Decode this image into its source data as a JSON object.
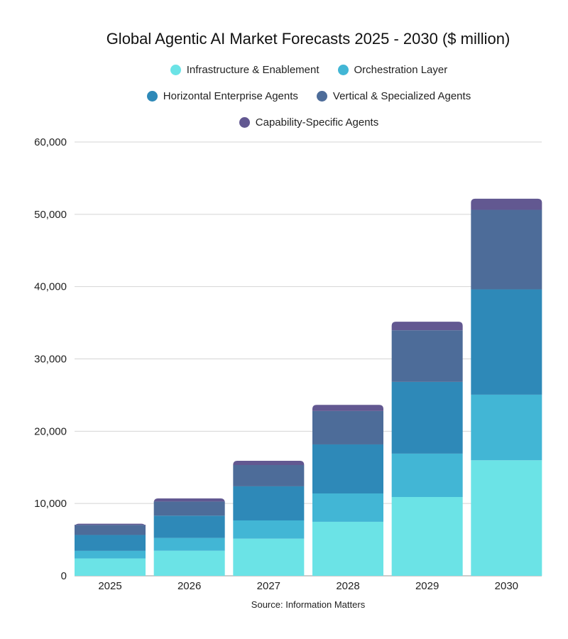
{
  "chart_data": {
    "type": "bar",
    "stacked": true,
    "title": "Global Agentic AI Market Forecasts 2025 - 2030 ($ million)",
    "xlabel": "",
    "ylabel": "",
    "source": "Source: Information Matters",
    "categories": [
      "2025",
      "2026",
      "2027",
      "2028",
      "2029",
      "2030"
    ],
    "ylim": [
      0,
      60000
    ],
    "yticks": [
      0,
      10000,
      20000,
      30000,
      40000,
      50000,
      60000
    ],
    "ytick_labels": [
      "0",
      "10,000",
      "20,000",
      "30,000",
      "40,000",
      "50,000",
      "60,000"
    ],
    "grid": true,
    "legend_position": "top",
    "series": [
      {
        "name": "Infrastructure & Enablement",
        "color": "#6be3e6",
        "values": [
          2400,
          3470,
          5140,
          7470,
          10900,
          15980
        ]
      },
      {
        "name": "Orchestration Layer",
        "color": "#42b6d5",
        "values": [
          1050,
          1770,
          2520,
          3920,
          6000,
          9070
        ]
      },
      {
        "name": "Horizontal Enterprise Agents",
        "color": "#2e89b8",
        "values": [
          2200,
          3080,
          4720,
          6780,
          9920,
          14570
        ]
      },
      {
        "name": "Vertical & Specialized Agents",
        "color": "#4d6c99",
        "values": [
          1400,
          1960,
          2940,
          4620,
          7140,
          11000
        ]
      },
      {
        "name": "Capability-Specific Agents",
        "color": "#625891",
        "values": [
          150,
          420,
          590,
          850,
          1180,
          1540
        ]
      }
    ]
  }
}
